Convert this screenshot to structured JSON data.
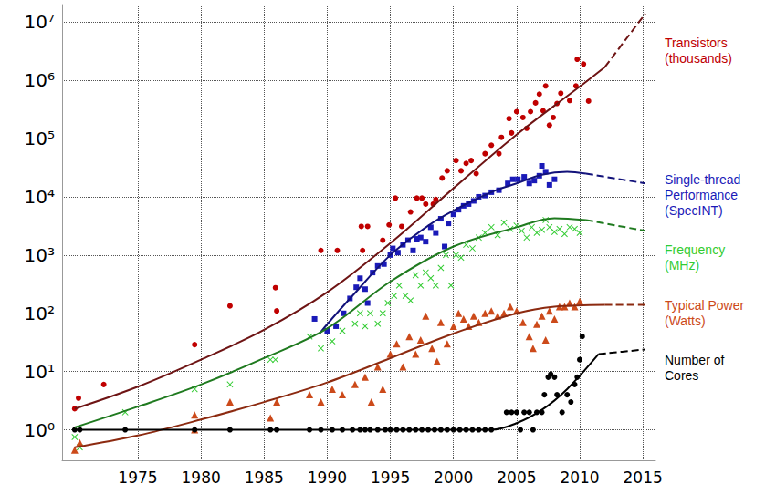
{
  "chart_data": {
    "type": "scatter",
    "log": "y",
    "grid": true,
    "xlim": [
      1969,
      2016
    ],
    "xticks": [
      1975,
      1980,
      1985,
      1990,
      1995,
      2000,
      2005,
      2010,
      2015
    ],
    "ylim": [
      0.3,
      20000000
    ],
    "yticks": [
      {
        "value": 1,
        "label": "10⁰"
      },
      {
        "value": 10,
        "label": "10¹"
      },
      {
        "value": 100,
        "label": "10²"
      },
      {
        "value": 1000,
        "label": "10³"
      },
      {
        "value": 10000,
        "label": "10⁴"
      },
      {
        "value": 100000,
        "label": "10⁵"
      },
      {
        "value": 1000000,
        "label": "10⁶"
      },
      {
        "value": 10000000,
        "label": "10⁷"
      }
    ],
    "series": [
      {
        "name": "Transistors (thousands)",
        "color": "#c00000",
        "marker": "circle",
        "x": [
          1970,
          1970.3,
          1972.3,
          1979.5,
          1982.3,
          1985.9,
          1986,
          1989.5,
          1990.8,
          1992.7,
          1993.2,
          1992.8,
          1994.4,
          1994.9,
          1995.4,
          1995.9,
          1996.6,
          1997.1,
          1997.5,
          1997.8,
          1998.4,
          1998.6,
          1999.1,
          1999.5,
          2000.2,
          2000.6,
          2001,
          2001.4,
          2001.8,
          2002.5,
          2003,
          2003.6,
          2003.8,
          2004.4,
          2004.6,
          2005,
          2005.5,
          2005.8,
          2006.1,
          2006.5,
          2006.8,
          2007.1,
          2007.3,
          2007.6,
          2007.9,
          2008.2,
          2008.5,
          2009.2,
          2009.7,
          2009.8,
          2010.3,
          2010.7
        ],
        "values": [
          2.3,
          3.5,
          6,
          29,
          134,
          275,
          110,
          1200,
          1200,
          3100,
          3100,
          1200,
          1800,
          3300,
          9500,
          3100,
          5500,
          9500,
          9500,
          7500,
          7500,
          9000,
          21000,
          28000,
          42000,
          28000,
          37500,
          42000,
          25000,
          55000,
          77000,
          55000,
          105000,
          220000,
          125000,
          290000,
          230000,
          150000,
          290000,
          410000,
          580000,
          300000,
          800000,
          170000,
          230000,
          400000,
          600000,
          450000,
          800000,
          2300000,
          1900000,
          440000
        ],
        "trend": {
          "color": "#6e1414",
          "line_style": "solid",
          "x": [
            1970,
            1975,
            1980,
            1985,
            1990,
            1995,
            2000,
            2005,
            2010,
            2012
          ],
          "values": [
            2.3,
            5.5,
            16,
            52,
            230,
            1600,
            14000,
            117000,
            780000,
            1700000
          ]
        },
        "projection": {
          "color": "#6e1414",
          "line_style": "dashed",
          "x": [
            2012,
            2015.2
          ],
          "values": [
            1700000,
            14000000
          ]
        }
      },
      {
        "name": "Single-thread Performance (SpecINT)",
        "color": "#1a1ab8",
        "marker": "square",
        "x": [
          1989,
          1990,
          1990.7,
          1991.3,
          1991.8,
          1992.3,
          1992.6,
          1993,
          1993.2,
          1993.6,
          1994,
          1994.5,
          1995,
          1995.2,
          1995.6,
          1996,
          1996.4,
          1996.8,
          1997.1,
          1997.4,
          1997.8,
          1998.2,
          1998.6,
          1999,
          1999.3,
          1999.6,
          2000,
          2000.4,
          2000.8,
          2001.2,
          2001.6,
          2002,
          2002.5,
          2003,
          2003.6,
          2004.3,
          2004.7,
          2005.1,
          2005.6,
          2006,
          2006.4,
          2006.8,
          2007,
          2007.3,
          2007.6,
          2008
        ],
        "values": [
          80,
          50,
          60,
          100,
          180,
          280,
          400,
          260,
          150,
          500,
          650,
          700,
          1000,
          1300,
          1100,
          1500,
          1800,
          1200,
          1900,
          2000,
          1700,
          3000,
          2400,
          4200,
          1400,
          3500,
          5000,
          6000,
          7000,
          7500,
          8500,
          10000,
          10500,
          12000,
          13000,
          17000,
          20000,
          20000,
          22000,
          17000,
          19000,
          23000,
          34000,
          27000,
          16000,
          20000
        ],
        "trend": {
          "color": "#12127a",
          "line_style": "solid",
          "x": [
            1989.4,
            1990,
            1992,
            1995,
            1998,
            2000,
            2003,
            2005,
            2007,
            2009,
            2010.5
          ],
          "values": [
            45,
            65,
            200,
            1000,
            3200,
            5800,
            12000,
            17000,
            24000,
            27000,
            25000
          ]
        },
        "projection": {
          "color": "#12127a",
          "line_style": "dashed",
          "x": [
            2010.5,
            2015.2
          ],
          "values": [
            25000,
            17000
          ]
        }
      },
      {
        "name": "Frequency (MHz)",
        "color": "#33cc33",
        "marker": "cross",
        "x": [
          1970,
          1970.4,
          1974,
          1979.5,
          1982.3,
          1985.5,
          1985.9,
          1988.6,
          1989.5,
          1990.4,
          1991.2,
          1992.2,
          1992.6,
          1993,
          1993.4,
          1994,
          1994.4,
          1994.8,
          1995.3,
          1995.7,
          1996.2,
          1996.6,
          1997,
          1997.4,
          1997.8,
          1998.2,
          1998.6,
          1999,
          1999.4,
          1999.8,
          2000.2,
          2000.6,
          2001,
          2001.5,
          2002,
          2002.5,
          2003,
          2003.5,
          2004,
          2004.5,
          2005,
          2005.4,
          2005.8,
          2006.2,
          2006.6,
          2007,
          2007.3,
          2007.6,
          2008,
          2008.4,
          2008.8,
          2009.2,
          2009.6,
          2010
        ],
        "values": [
          0.75,
          0.5,
          2,
          5,
          6,
          16,
          16,
          40,
          25,
          33,
          50,
          66,
          100,
          60,
          100,
          66,
          100,
          150,
          200,
          300,
          200,
          166,
          450,
          300,
          500,
          400,
          300,
          600,
          1000,
          300,
          1000,
          900,
          1500,
          1300,
          2000,
          2400,
          3000,
          2200,
          3600,
          2800,
          3200,
          2600,
          2000,
          3000,
          2400,
          2700,
          4000,
          3000,
          2500,
          2800,
          2300,
          3000,
          2800,
          2400
        ],
        "trend": {
          "color": "#1f7a1f",
          "line_style": "solid",
          "x": [
            1970,
            1975,
            1980,
            1985,
            1990,
            1995,
            2000,
            2005,
            2008,
            2010.5
          ],
          "values": [
            1.1,
            2.5,
            6,
            17,
            55,
            350,
            1400,
            3000,
            4300,
            4000
          ]
        },
        "projection": {
          "color": "#1f7a1f",
          "line_style": "dashed",
          "x": [
            2010.5,
            2015.2
          ],
          "values": [
            4000,
            2600
          ]
        }
      },
      {
        "name": "Typical Power (Watts)",
        "color": "#cc4a1a",
        "marker": "triangle",
        "x": [
          1970,
          1970.4,
          1979.5,
          1979.5,
          1982.3,
          1985.5,
          1986,
          1988.6,
          1989.5,
          1990.4,
          1991.2,
          1992.2,
          1993,
          1993.5,
          1994,
          1994.4,
          1995,
          1995.5,
          1996,
          1996.5,
          1997,
          1997.4,
          1997.8,
          1998.3,
          1998.7,
          1999,
          1999.5,
          2000,
          2000.4,
          2000.8,
          2001.2,
          2001.6,
          2002,
          2002.5,
          2003,
          2003.5,
          2004,
          2004.5,
          2005,
          2005.5,
          2006,
          2006.3,
          2006.6,
          2007,
          2007.3,
          2007.6,
          2008,
          2008.4,
          2008.8,
          2009.2,
          2009.6,
          2010
        ],
        "values": [
          0.45,
          0.6,
          1.8,
          1,
          3,
          1.6,
          3,
          4,
          3,
          5,
          4,
          6,
          8,
          3,
          12,
          5,
          20,
          30,
          12,
          40,
          20,
          35,
          90,
          25,
          15,
          70,
          30,
          60,
          100,
          80,
          60,
          90,
          70,
          100,
          110,
          90,
          100,
          130,
          110,
          70,
          40,
          25,
          65,
          90,
          35,
          110,
          80,
          130,
          130,
          150,
          130,
          160
        ],
        "trend": {
          "color": "#8c2a10",
          "line_style": "solid",
          "x": [
            1970,
            1975,
            1980,
            1985,
            1990,
            1995,
            2000,
            2005,
            2008,
            2012
          ],
          "values": [
            0.5,
            0.8,
            1.5,
            3,
            6.5,
            17,
            45,
            100,
            130,
            140
          ]
        },
        "projection": {
          "color": "#8c2a10",
          "line_style": "dashed",
          "x": [
            2012,
            2015.2
          ],
          "values": [
            140,
            140
          ]
        }
      },
      {
        "name": "Number of Cores",
        "color": "#000000",
        "marker": "circle",
        "x": [
          1970,
          1970.4,
          1974,
          1979.5,
          1982.3,
          1985.5,
          1986,
          1988.6,
          1989.5,
          1990.4,
          1991.2,
          1992,
          1992.6,
          1993,
          1993.4,
          1994,
          1994.6,
          1995,
          1995.5,
          1996,
          1996.5,
          1997,
          1997.5,
          1998,
          1998.5,
          1999,
          1999.5,
          2000,
          2000.5,
          2001,
          2001.5,
          2002,
          2002.5,
          2003,
          2004.2,
          2004.6,
          2005,
          2005.3,
          2005.6,
          2006,
          2006.3,
          2006.6,
          2007,
          2007.2,
          2007.5,
          2007.7,
          2008,
          2008.2,
          2008.6,
          2009,
          2009.3,
          2009.6,
          2009.8,
          2010,
          2010.2
        ],
        "values": [
          1,
          1,
          1,
          1,
          1,
          1,
          1,
          1,
          1,
          1,
          1,
          1,
          1,
          1,
          1,
          1,
          1,
          1,
          1,
          1,
          1,
          1,
          1,
          1,
          1,
          1,
          1,
          1,
          1,
          1,
          1,
          1,
          1,
          1,
          2,
          2,
          2,
          1,
          2,
          2,
          1,
          2,
          2,
          4,
          8,
          9,
          8,
          4,
          2,
          4,
          3,
          6,
          8,
          16,
          40
        ],
        "trend": {
          "color": "#000000",
          "line_style": "solid",
          "x": [
            1970,
            2003,
            2005,
            2007,
            2009,
            2011.5
          ],
          "values": [
            1,
            1,
            1.3,
            2.2,
            5,
            20
          ]
        },
        "projection": {
          "color": "#000000",
          "line_style": "dashed",
          "x": [
            2011.5,
            2015.2
          ],
          "values": [
            20,
            24
          ]
        }
      }
    ]
  }
}
